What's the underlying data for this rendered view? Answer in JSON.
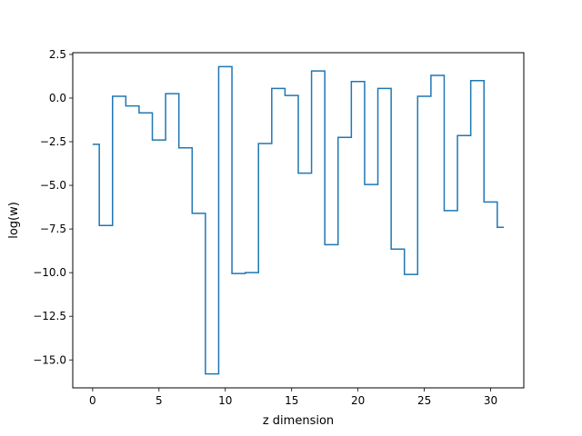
{
  "chart_data": {
    "type": "line",
    "drawstyle": "steps-mid",
    "xlabel": "z dimension",
    "ylabel": "log(w)",
    "xlim": [
      -1.5,
      32.5
    ],
    "ylim": [
      -16.6,
      2.6
    ],
    "xticks": [
      0,
      5,
      10,
      15,
      20,
      25,
      30
    ],
    "xtick_labels": [
      "0",
      "5",
      "10",
      "15",
      "20",
      "25",
      "30"
    ],
    "yticks": [
      2.5,
      0.0,
      -2.5,
      -5.0,
      -7.5,
      -10.0,
      -12.5,
      -15.0
    ],
    "ytick_labels": [
      "2.5",
      "0.0",
      "−2.5",
      "−5.0",
      "−7.5",
      "−10.0",
      "−12.5",
      "−15.0"
    ],
    "grid": false,
    "series": [
      {
        "color": "#1f77b4",
        "x": [
          0,
          1,
          2,
          3,
          4,
          5,
          6,
          7,
          8,
          9,
          10,
          11,
          12,
          13,
          14,
          15,
          16,
          17,
          18,
          19,
          20,
          21,
          22,
          23,
          24,
          25,
          26,
          27,
          28,
          29,
          30,
          31
        ],
        "values": [
          -2.65,
          -7.3,
          0.1,
          -0.45,
          -0.85,
          -2.4,
          0.25,
          -2.85,
          -6.6,
          -15.8,
          1.8,
          -10.05,
          -10.0,
          -2.6,
          0.55,
          0.15,
          -4.3,
          1.55,
          -8.4,
          -2.25,
          0.95,
          -4.95,
          0.55,
          -8.65,
          -10.1,
          0.1,
          1.3,
          -6.45,
          -2.15,
          1.0,
          -5.95,
          -7.4
        ]
      }
    ]
  }
}
